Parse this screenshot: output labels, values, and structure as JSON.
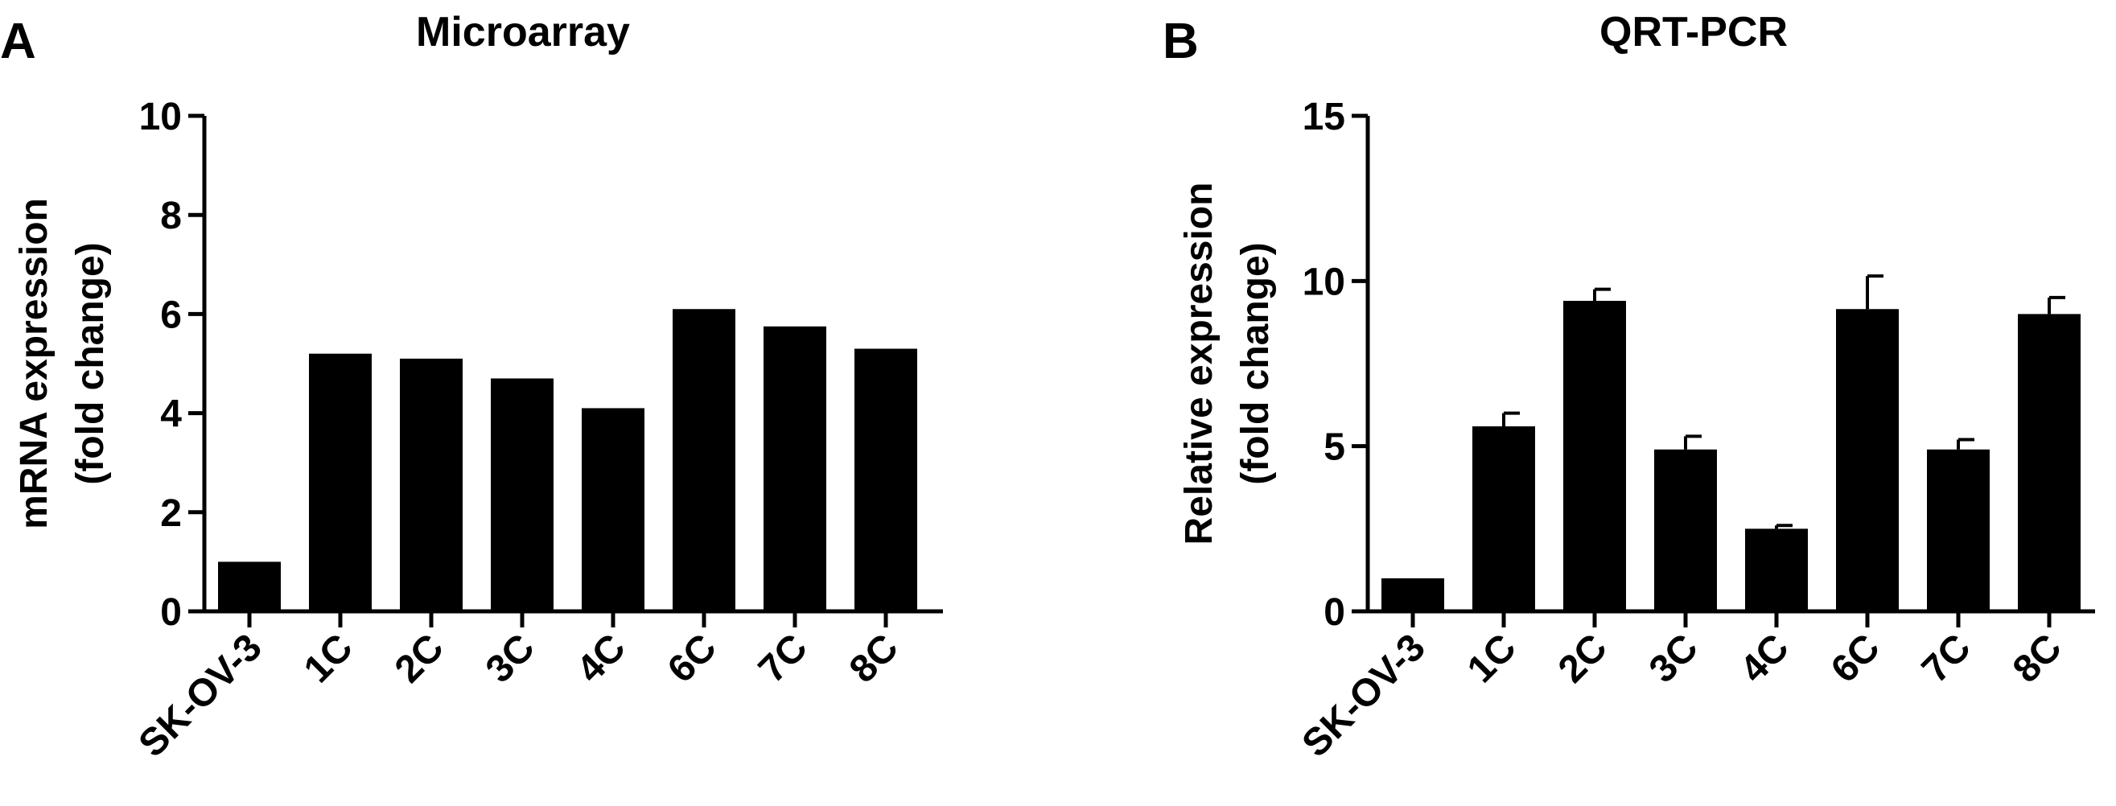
{
  "colors": {
    "bar": "#000000",
    "axis": "#000000",
    "background": "#ffffff"
  },
  "panels": [
    {
      "letter": "A",
      "chart_data": {
        "type": "bar",
        "title": "Microarray",
        "ylabel_lines": [
          "mRNA expression",
          "(fold change)"
        ],
        "xlabel": "",
        "categories": [
          "SK-OV-3",
          "1C",
          "2C",
          "3C",
          "4C",
          "6C",
          "7C",
          "8C"
        ],
        "values": [
          1.0,
          5.2,
          5.1,
          4.7,
          4.1,
          6.1,
          5.75,
          5.3
        ],
        "errors": null,
        "ylim": [
          0,
          10
        ],
        "yticks": [
          0,
          2,
          4,
          6,
          8,
          10
        ],
        "grid": false,
        "legend": "none"
      }
    },
    {
      "letter": "B",
      "chart_data": {
        "type": "bar",
        "title": "QRT-PCR",
        "ylabel_lines": [
          "Relative expression",
          "(fold change)"
        ],
        "xlabel": "",
        "categories": [
          "SK-OV-3",
          "1C",
          "2C",
          "3C",
          "4C",
          "6C",
          "7C",
          "8C"
        ],
        "values": [
          1.0,
          5.6,
          9.4,
          4.9,
          2.5,
          9.15,
          4.9,
          9.0
        ],
        "errors": [
          0.0,
          0.4,
          0.35,
          0.4,
          0.1,
          1.0,
          0.3,
          0.5
        ],
        "ylim": [
          0,
          15
        ],
        "yticks": [
          0,
          5,
          10,
          15
        ],
        "grid": false,
        "legend": "none"
      }
    }
  ]
}
